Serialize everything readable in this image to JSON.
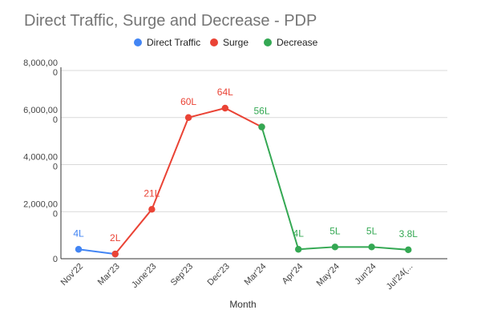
{
  "chart_data": {
    "type": "line",
    "title": "Direct Traffic, Surge and Decrease - PDP",
    "xlabel": "Month",
    "ylabel": "",
    "ylim": [
      0,
      8000
    ],
    "yticks": [
      {
        "value": 0,
        "label": "0"
      },
      {
        "value": 2000,
        "label": "2,000,00\n0"
      },
      {
        "value": 4000,
        "label": "4,000,00\n0"
      },
      {
        "value": 6000,
        "label": "6,000,00\n0"
      },
      {
        "value": 8000,
        "label": "8,000,00\n0"
      }
    ],
    "categories": [
      "Nov'22",
      "Mar'23",
      "June'23",
      "Sep'23",
      "Dec'23",
      "Mar'24",
      "Apr'24",
      "May'24",
      "Jun'24",
      "Jul'24(..."
    ],
    "grid": true,
    "legend_position": "top",
    "series": [
      {
        "name": "Direct Traffic",
        "color": "#4285F4",
        "points": [
          {
            "x": "Nov'22",
            "y": 400,
            "label": "4L"
          },
          {
            "x": "Mar'23",
            "y": 200,
            "label": ""
          }
        ]
      },
      {
        "name": "Surge",
        "color": "#EA4335",
        "points": [
          {
            "x": "Mar'23",
            "y": 200,
            "label": "2L"
          },
          {
            "x": "June'23",
            "y": 2100,
            "label": "21L"
          },
          {
            "x": "Sep'23",
            "y": 6000,
            "label": "60L"
          },
          {
            "x": "Dec'23",
            "y": 6400,
            "label": "64L"
          },
          {
            "x": "Mar'24",
            "y": 5600,
            "label": ""
          }
        ]
      },
      {
        "name": "Decrease",
        "color": "#34A853",
        "points": [
          {
            "x": "Mar'24",
            "y": 5600,
            "label": "56L"
          },
          {
            "x": "Apr'24",
            "y": 400,
            "label": "4L"
          },
          {
            "x": "May'24",
            "y": 500,
            "label": "5L"
          },
          {
            "x": "Jun'24",
            "y": 500,
            "label": "5L"
          },
          {
            "x": "Jul'24(...",
            "y": 380,
            "label": "3.8L"
          }
        ]
      }
    ]
  }
}
